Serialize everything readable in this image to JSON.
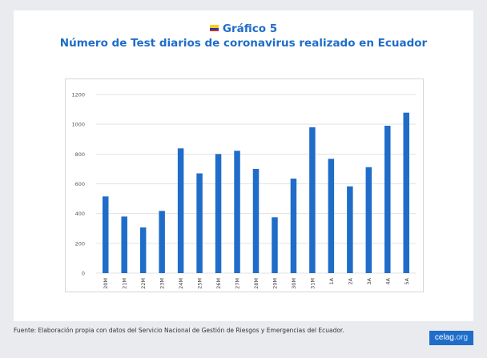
{
  "header": {
    "title": "Gráfico 5",
    "subtitle": "Número de Test diarios de coronavirus realizado en Ecuador"
  },
  "footer": {
    "source": "Fuente: Elaboración propia con datos del Servicio Nacional de Gestión de Riesgos y Emergencias del Ecuador."
  },
  "logo": {
    "brand": "celag",
    "suffix": ".org"
  },
  "colors": {
    "bar": "#1f6dc9",
    "title": "#1f6dc9",
    "grid": "#e3e3e3"
  },
  "chart_data": {
    "type": "bar",
    "title": "Número de Test diarios de coronavirus realizado en Ecuador",
    "xlabel": "",
    "ylabel": "",
    "categories": [
      "20M",
      "21M",
      "22M",
      "23M",
      "24M",
      "25M",
      "26M",
      "27M",
      "28M",
      "29M",
      "30M",
      "31M",
      "1A",
      "2A",
      "3A",
      "4A",
      "5A"
    ],
    "values": [
      515,
      380,
      307,
      418,
      838,
      670,
      800,
      822,
      700,
      375,
      635,
      980,
      768,
      583,
      712,
      990,
      1078
    ],
    "ylim": [
      0,
      1200
    ],
    "yticks": [
      0,
      200,
      400,
      600,
      800,
      1000,
      1200
    ],
    "grid": true
  }
}
